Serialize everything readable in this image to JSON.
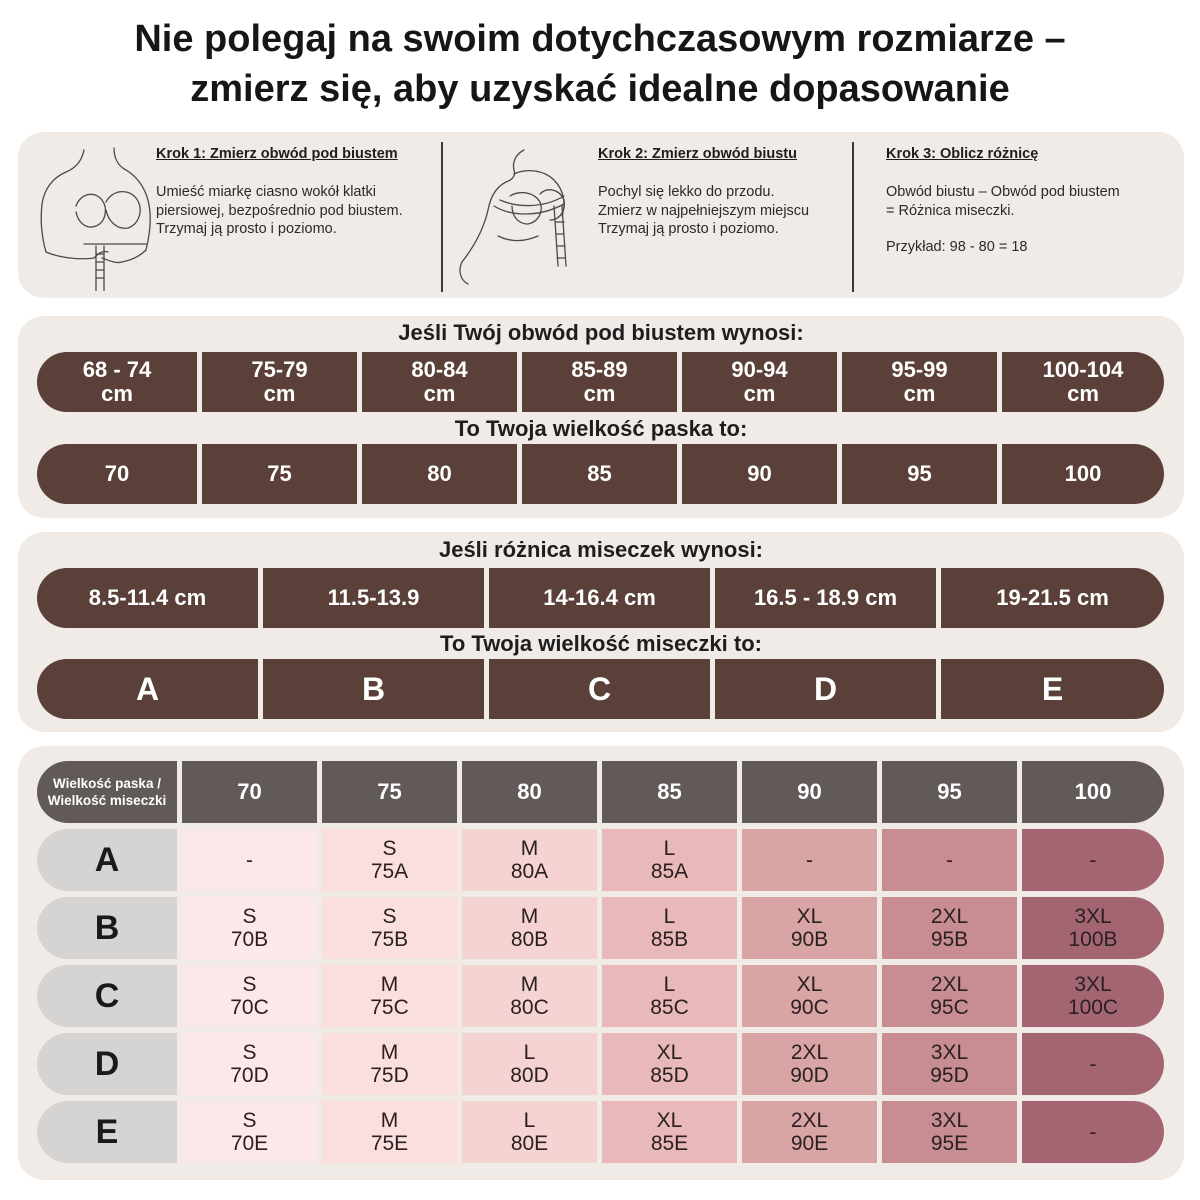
{
  "title": {
    "line1": "Nie polegaj na swoim dotychczasowym rozmiarze –",
    "line2": "zmierz się, aby uzyskać idealne dopasowanie"
  },
  "steps": [
    {
      "title": "Krok 1: Zmierz obwód pod biustem",
      "lines": [
        "Umieść miarkę ciasno wokół klatki",
        "piersiowej, bezpośrednio pod biustem.",
        "Trzymaj ją prosto i poziomo."
      ],
      "icon": "measuring-underbust-illustration"
    },
    {
      "title": "Krok 2: Zmierz obwód biustu",
      "lines": [
        "Pochyl się lekko do przodu.",
        "Zmierz w najpełniejszym miejscu",
        "Trzymaj ją prosto i poziomo."
      ],
      "icon": "measuring-bust-illustration"
    },
    {
      "title": "Krok 3: Oblicz różnicę",
      "lines": [
        "Obwód biustu – Obwód pod biustem",
        "= Różnica miseczki."
      ],
      "example": "Przykład: 98 - 80 = 18"
    }
  ],
  "band": {
    "heading_if": "Jeśli Twój obwód pod biustem wynosi:",
    "heading_then": "To Twoja wielkość paska to:",
    "ranges": [
      {
        "range": "68 - 74",
        "unit": "cm"
      },
      {
        "range": "75-79",
        "unit": "cm"
      },
      {
        "range": "80-84",
        "unit": "cm"
      },
      {
        "range": "85-89",
        "unit": "cm"
      },
      {
        "range": "90-94",
        "unit": "cm"
      },
      {
        "range": "95-99",
        "unit": "cm"
      },
      {
        "range": "100-104",
        "unit": "cm"
      }
    ],
    "sizes": [
      "70",
      "75",
      "80",
      "85",
      "90",
      "95",
      "100"
    ]
  },
  "cup": {
    "heading_if": "Jeśli różnica miseczek wynosi:",
    "heading_then": "To Twoja wielkość miseczki to:",
    "ranges": [
      "8.5-11.4 cm",
      "11.5-13.9",
      "14-16.4 cm",
      "16.5 - 18.9 cm",
      "19-21.5 cm"
    ],
    "sizes": [
      "A",
      "B",
      "C",
      "D",
      "E"
    ]
  },
  "table": {
    "corner": {
      "line1": "Wielkość paska /",
      "line2": "Wielkość miseczki"
    },
    "columns": [
      "70",
      "75",
      "80",
      "85",
      "90",
      "95",
      "100"
    ],
    "column_colors": [
      "#fce8e8",
      "#fbdfdf",
      "#f5d3d3",
      "#e9b8b8",
      "#d9a4a4",
      "#c78d93",
      "#a46572"
    ],
    "header_color": "#625a58",
    "rows": [
      {
        "label": "A",
        "cells": [
          [
            "-"
          ],
          [
            "S",
            "75A"
          ],
          [
            "M",
            "80A"
          ],
          [
            "L",
            "85A"
          ],
          [
            "-"
          ],
          [
            "-"
          ],
          [
            "-"
          ]
        ]
      },
      {
        "label": "B",
        "cells": [
          [
            "S",
            "70B"
          ],
          [
            "S",
            "75B"
          ],
          [
            "M",
            "80B"
          ],
          [
            "L",
            "85B"
          ],
          [
            "XL",
            "90B"
          ],
          [
            "2XL",
            "95B"
          ],
          [
            "3XL",
            "100B"
          ]
        ]
      },
      {
        "label": "C",
        "cells": [
          [
            "S",
            "70C"
          ],
          [
            "M",
            "75C"
          ],
          [
            "M",
            "80C"
          ],
          [
            "L",
            "85C"
          ],
          [
            "XL",
            "90C"
          ],
          [
            "2XL",
            "95C"
          ],
          [
            "3XL",
            "100C"
          ]
        ]
      },
      {
        "label": "D",
        "cells": [
          [
            "S",
            "70D"
          ],
          [
            "M",
            "75D"
          ],
          [
            "L",
            "80D"
          ],
          [
            "XL",
            "85D"
          ],
          [
            "2XL",
            "90D"
          ],
          [
            "3XL",
            "95D"
          ],
          [
            "-"
          ]
        ]
      },
      {
        "label": "E",
        "cells": [
          [
            "S",
            "70E"
          ],
          [
            "M",
            "75E"
          ],
          [
            "L",
            "80E"
          ],
          [
            "XL",
            "85E"
          ],
          [
            "2XL",
            "90E"
          ],
          [
            "3XL",
            "95E"
          ],
          [
            "-"
          ]
        ]
      }
    ]
  }
}
